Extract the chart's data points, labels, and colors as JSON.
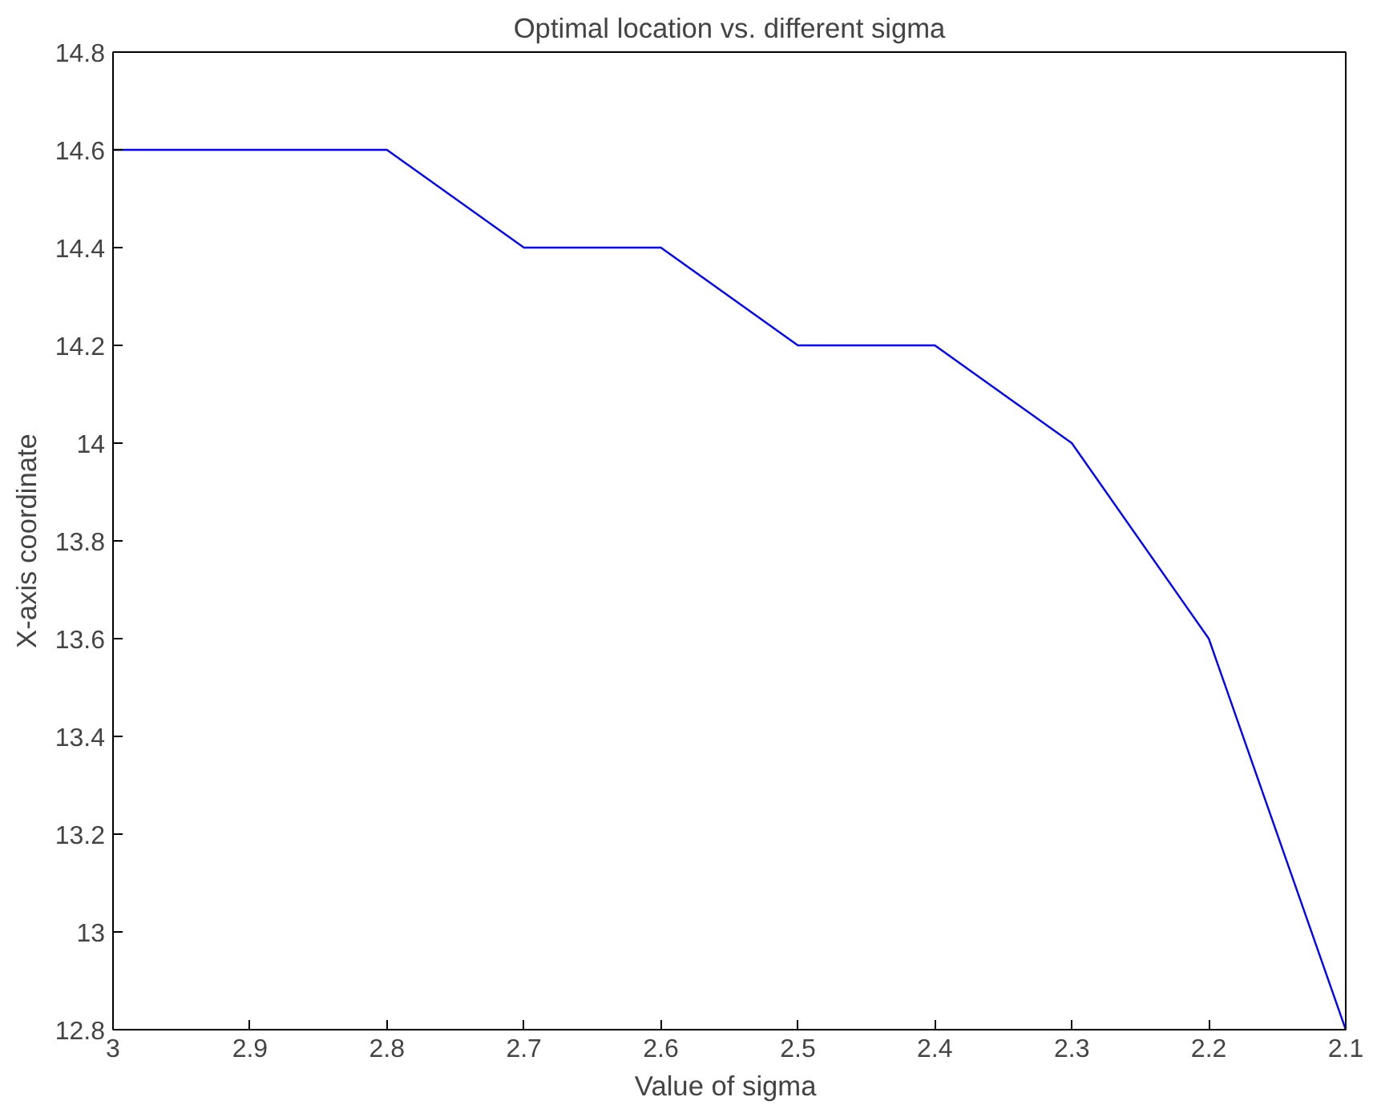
{
  "chart_data": {
    "type": "line",
    "title": "Optimal location vs. different sigma",
    "xlabel": "Value of  sigma",
    "ylabel": "X-axis coordinate",
    "x": [
      3,
      2.9,
      2.8,
      2.7,
      2.6,
      2.5,
      2.4,
      2.3,
      2.2,
      2.1
    ],
    "series": [
      {
        "color": "#0000ff",
        "values": [
          14.6,
          14.6,
          14.6,
          14.4,
          14.4,
          14.2,
          14.2,
          14.0,
          13.6,
          12.8
        ]
      }
    ],
    "xlim": [
      3,
      2.1
    ],
    "xticks": [
      3,
      2.9,
      2.8,
      2.7,
      2.6,
      2.5,
      2.4,
      2.3,
      2.2,
      2.1
    ],
    "ylim": [
      12.8,
      14.8
    ],
    "yticks": [
      12.8,
      13,
      13.2,
      13.4,
      13.6,
      13.8,
      14,
      14.2,
      14.4,
      14.6,
      14.8
    ],
    "grid": false,
    "marker": "none",
    "line_style": "solid"
  }
}
